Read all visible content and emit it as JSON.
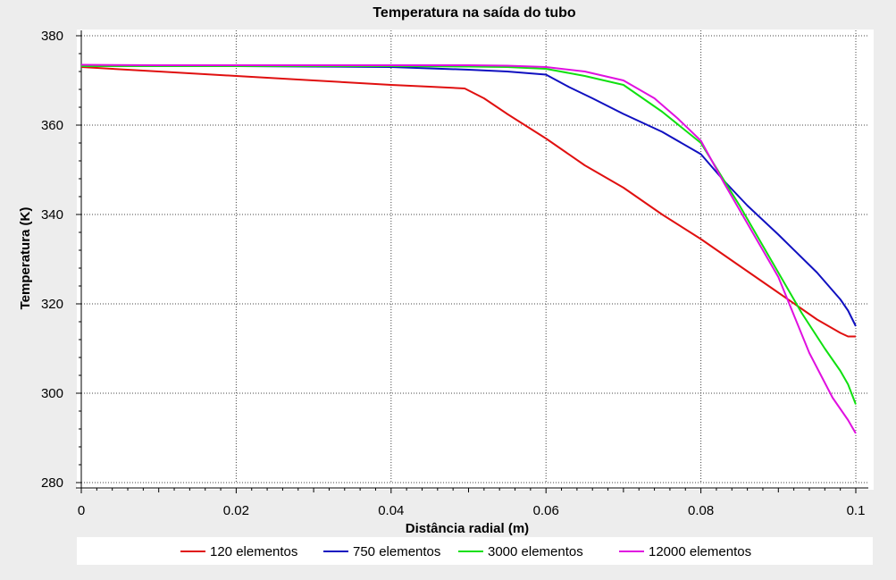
{
  "chart_data": {
    "type": "line",
    "title": "Temperatura na saída do tubo",
    "xlabel": "Distância radial (m)",
    "ylabel": "Temperatura (K)",
    "xlim": [
      0,
      0.1
    ],
    "ylim": [
      280,
      380
    ],
    "xticks": [
      "0",
      "0.02",
      "0.04",
      "0.06",
      "0.08",
      "0.1"
    ],
    "yticks": [
      "280",
      "300",
      "320",
      "340",
      "360",
      "380"
    ],
    "grid": true,
    "legend_position": "bottom",
    "series": [
      {
        "name": "120 elementos",
        "color": "#e01010",
        "x": [
          0,
          0.01,
          0.02,
          0.03,
          0.04,
          0.045,
          0.0495,
          0.052,
          0.055,
          0.06,
          0.065,
          0.07,
          0.075,
          0.08,
          0.085,
          0.09,
          0.095,
          0.098,
          0.099,
          0.1
        ],
        "y": [
          373,
          372,
          371,
          370,
          369,
          368.6,
          368.2,
          366,
          362.5,
          357,
          351,
          346,
          340,
          334.5,
          328.5,
          322.5,
          316.5,
          313.5,
          312.7,
          312.7
        ]
      },
      {
        "name": "750 elementos",
        "color": "#1010c0",
        "x": [
          0,
          0.01,
          0.02,
          0.03,
          0.04,
          0.05,
          0.055,
          0.06,
          0.063,
          0.066,
          0.07,
          0.075,
          0.08,
          0.083,
          0.086,
          0.09,
          0.095,
          0.098,
          0.099,
          0.1
        ],
        "y": [
          373.2,
          373.2,
          373.2,
          373.1,
          373,
          372.4,
          372,
          371.3,
          368.5,
          366,
          362.5,
          358.5,
          353.5,
          347.5,
          342,
          335.5,
          327,
          321,
          318.5,
          315
        ]
      },
      {
        "name": "3000 elementos",
        "color": "#10e010",
        "x": [
          0,
          0.01,
          0.02,
          0.03,
          0.04,
          0.05,
          0.055,
          0.06,
          0.065,
          0.07,
          0.075,
          0.08,
          0.085,
          0.09,
          0.093,
          0.096,
          0.098,
          0.099,
          0.1
        ],
        "y": [
          373.2,
          373.2,
          373.2,
          373.2,
          373.2,
          373.1,
          373,
          372.6,
          371,
          369,
          363,
          356,
          342,
          327,
          318,
          310,
          305,
          302,
          297.5
        ]
      },
      {
        "name": "12000 elementos",
        "color": "#e010e0",
        "x": [
          0,
          0.01,
          0.02,
          0.03,
          0.04,
          0.05,
          0.055,
          0.06,
          0.065,
          0.07,
          0.074,
          0.077,
          0.08,
          0.083,
          0.086,
          0.09,
          0.094,
          0.097,
          0.099,
          0.1
        ],
        "y": [
          373.5,
          373.4,
          373.4,
          373.4,
          373.4,
          373.4,
          373.3,
          373,
          372,
          370,
          366,
          361.5,
          356.5,
          347,
          338,
          326,
          309,
          299,
          294,
          291
        ]
      }
    ]
  }
}
